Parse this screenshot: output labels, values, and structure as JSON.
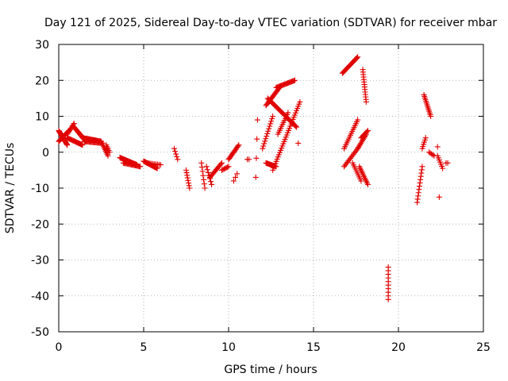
{
  "chart_data": {
    "type": "scatter",
    "title": "Day 121 of 2025, Sidereal Day-to-day VTEC variation (SDTVAR) for receiver mbar",
    "xlabel": "GPS time / hours",
    "ylabel": "SDTVAR / TECUs",
    "xlim": [
      0,
      25
    ],
    "ylim": [
      -50,
      30
    ],
    "xticks": [
      0,
      5,
      10,
      15,
      20,
      25
    ],
    "yticks": [
      -50,
      -40,
      -30,
      -20,
      -10,
      0,
      10,
      20,
      30
    ],
    "grid": true,
    "marker": "+",
    "color": "#e00000",
    "series": [
      {
        "name": "SDTVAR",
        "segments": [
          {
            "x0": 0.0,
            "x1": 0.5,
            "y0": 6,
            "y1": 2,
            "n": 22
          },
          {
            "x0": 0.0,
            "x1": 0.6,
            "y0": 3,
            "y1": 6,
            "n": 18
          },
          {
            "x0": 0.5,
            "x1": 0.9,
            "y0": 5,
            "y1": 8,
            "n": 10
          },
          {
            "x0": 0.9,
            "x1": 1.6,
            "y0": 7,
            "y1": 3,
            "n": 22
          },
          {
            "x0": 0.5,
            "x1": 1.4,
            "y0": 4,
            "y1": 2,
            "n": 20
          },
          {
            "x0": 1.4,
            "x1": 2.5,
            "y0": 4,
            "y1": 3,
            "n": 26
          },
          {
            "x0": 1.5,
            "x1": 2.6,
            "y0": 3,
            "y1": 2.5,
            "n": 20
          },
          {
            "x0": 2.6,
            "x1": 2.9,
            "y0": 2,
            "y1": -1,
            "n": 8
          },
          {
            "x0": 2.8,
            "x1": 3.0,
            "y0": 2,
            "y1": 0,
            "n": 5
          },
          {
            "x0": 3.6,
            "x1": 4.6,
            "y0": -1.5,
            "y1": -3.5,
            "n": 24
          },
          {
            "x0": 3.8,
            "x1": 4.8,
            "y0": -3,
            "y1": -4,
            "n": 18
          },
          {
            "x0": 5.0,
            "x1": 5.8,
            "y0": -2.5,
            "y1": -4.5,
            "n": 20
          },
          {
            "x0": 5.2,
            "x1": 6.0,
            "y0": -3,
            "y1": -3.5,
            "n": 10
          },
          {
            "x0": 6.8,
            "x1": 7.0,
            "y0": 1,
            "y1": -2,
            "n": 5
          },
          {
            "x0": 7.5,
            "x1": 7.7,
            "y0": -5,
            "y1": -10,
            "n": 8
          },
          {
            "x0": 8.4,
            "x1": 8.6,
            "y0": -3,
            "y1": -10,
            "n": 7
          },
          {
            "x0": 8.7,
            "x1": 9.0,
            "y0": -4,
            "y1": -9,
            "n": 7
          },
          {
            "x0": 8.9,
            "x1": 9.6,
            "y0": -7,
            "y1": -3,
            "n": 14
          },
          {
            "x0": 9.6,
            "x1": 10.0,
            "y0": -5,
            "y1": -4,
            "n": 7
          },
          {
            "x0": 10.0,
            "x1": 10.6,
            "y0": -2,
            "y1": 2,
            "n": 14
          },
          {
            "x0": 10.3,
            "x1": 10.5,
            "y0": -8,
            "y1": -6,
            "n": 3
          },
          {
            "x0": 11.1,
            "x1": 11.2,
            "y0": -2,
            "y1": -2,
            "n": 2
          },
          {
            "x0": 11.6,
            "x1": 11.7,
            "y0": -7,
            "y1": 9,
            "n": 4
          },
          {
            "x0": 12.2,
            "x1": 12.8,
            "y0": -3,
            "y1": -4,
            "n": 14
          },
          {
            "x0": 12.0,
            "x1": 12.6,
            "y0": 1,
            "y1": 10,
            "n": 14
          },
          {
            "x0": 12.2,
            "x1": 13.0,
            "y0": 13,
            "y1": 18,
            "n": 18
          },
          {
            "x0": 12.8,
            "x1": 13.9,
            "y0": 18,
            "y1": 20,
            "n": 22
          },
          {
            "x0": 12.3,
            "x1": 14.0,
            "y0": 15,
            "y1": 7,
            "n": 34
          },
          {
            "x0": 12.6,
            "x1": 14.2,
            "y0": -5,
            "y1": 14,
            "n": 32
          },
          {
            "x0": 12.9,
            "x1": 13.5,
            "y0": 5,
            "y1": 11,
            "n": 12
          },
          {
            "x0": 14.1,
            "x1": 14.1,
            "y0": 2.5,
            "y1": 2.5,
            "n": 1
          },
          {
            "x0": 16.7,
            "x1": 17.6,
            "y0": 22,
            "y1": 26.5,
            "n": 22
          },
          {
            "x0": 16.8,
            "x1": 17.6,
            "y0": 1,
            "y1": 9,
            "n": 16
          },
          {
            "x0": 16.8,
            "x1": 17.6,
            "y0": -4,
            "y1": 1,
            "n": 14
          },
          {
            "x0": 17.3,
            "x1": 17.8,
            "y0": -3,
            "y1": -8,
            "n": 10
          },
          {
            "x0": 17.6,
            "x1": 18.1,
            "y0": 1,
            "y1": 5,
            "n": 12
          },
          {
            "x0": 17.7,
            "x1": 18.2,
            "y0": -4,
            "y1": -9,
            "n": 12
          },
          {
            "x0": 17.8,
            "x1": 18.2,
            "y0": 4,
            "y1": 6,
            "n": 8
          },
          {
            "x0": 17.9,
            "x1": 18.1,
            "y0": 23,
            "y1": 14,
            "n": 14
          },
          {
            "x0": 19.4,
            "x1": 19.4,
            "y0": -32,
            "y1": -41,
            "n": 10
          },
          {
            "x0": 21.1,
            "x1": 21.4,
            "y0": -14,
            "y1": -4,
            "n": 12
          },
          {
            "x0": 21.4,
            "x1": 21.6,
            "y0": 1,
            "y1": 4,
            "n": 6
          },
          {
            "x0": 21.5,
            "x1": 21.9,
            "y0": 16,
            "y1": 10,
            "n": 14
          },
          {
            "x0": 21.8,
            "x1": 22.1,
            "y0": 0,
            "y1": -1,
            "n": 5
          },
          {
            "x0": 22.3,
            "x1": 22.6,
            "y0": -1,
            "y1": -4.5,
            "n": 7
          },
          {
            "x0": 22.3,
            "x1": 22.4,
            "y0": 1.5,
            "y1": 1.5,
            "n": 1
          },
          {
            "x0": 22.4,
            "x1": 22.4,
            "y0": -12.5,
            "y1": -12.5,
            "n": 1
          },
          {
            "x0": 22.8,
            "x1": 22.9,
            "y0": -3,
            "y1": -3,
            "n": 2
          }
        ]
      }
    ]
  }
}
